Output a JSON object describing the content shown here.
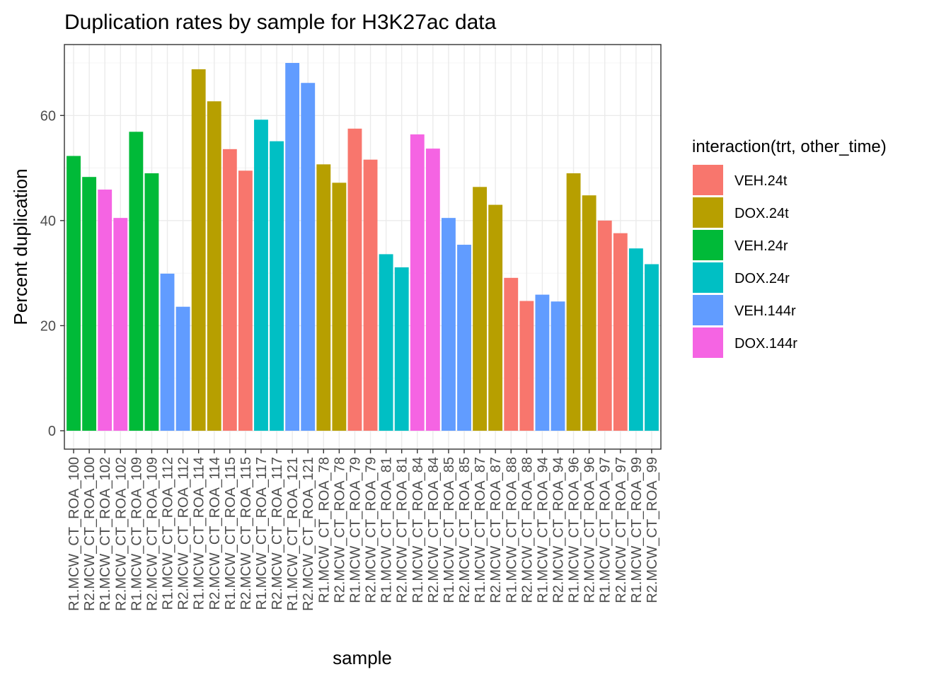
{
  "chart_data": {
    "type": "bar",
    "title": "Duplication rates by sample for H3K27ac data",
    "xlabel": "sample",
    "ylabel": "Percent duplication",
    "ylim": [
      -3.5,
      73.5
    ],
    "yticks": [
      0,
      20,
      40,
      60
    ],
    "grid": true,
    "legend": {
      "title": "interaction(trt, other_time)",
      "placement": "right",
      "entries": [
        {
          "name": "VEH.24t",
          "color": "#F8766D"
        },
        {
          "name": "DOX.24t",
          "color": "#B79F00"
        },
        {
          "name": "VEH.24r",
          "color": "#00BA38"
        },
        {
          "name": "DOX.24r",
          "color": "#00BFC4"
        },
        {
          "name": "VEH.144r",
          "color": "#619CFF"
        },
        {
          "name": "DOX.144r",
          "color": "#F564E3"
        }
      ]
    },
    "categories": [
      "R1.MCW_CT_ROA_100",
      "R2.MCW_CT_ROA_100",
      "R1.MCW_CT_ROA_102",
      "R2.MCW_CT_ROA_102",
      "R1.MCW_CT_ROA_109",
      "R2.MCW_CT_ROA_109",
      "R1.MCW_CT_ROA_112",
      "R2.MCW_CT_ROA_112",
      "R1.MCW_CT_ROA_114",
      "R2.MCW_CT_ROA_114",
      "R1.MCW_CT_ROA_115",
      "R2.MCW_CT_ROA_115",
      "R1.MCW_CT_ROA_117",
      "R2.MCW_CT_ROA_117",
      "R1.MCW_CT_ROA_121",
      "R2.MCW_CT_ROA_121",
      "R1.MCW_CT_ROA_78",
      "R2.MCW_CT_ROA_78",
      "R1.MCW_CT_ROA_79",
      "R2.MCW_CT_ROA_79",
      "R1.MCW_CT_ROA_81",
      "R2.MCW_CT_ROA_81",
      "R1.MCW_CT_ROA_84",
      "R2.MCW_CT_ROA_84",
      "R1.MCW_CT_ROA_85",
      "R2.MCW_CT_ROA_85",
      "R1.MCW_CT_ROA_87",
      "R2.MCW_CT_ROA_87",
      "R1.MCW_CT_ROA_88",
      "R2.MCW_CT_ROA_88",
      "R1.MCW_CT_ROA_94",
      "R2.MCW_CT_ROA_94",
      "R1.MCW_CT_ROA_96",
      "R2.MCW_CT_ROA_96",
      "R1.MCW_CT_ROA_97",
      "R2.MCW_CT_ROA_97",
      "R1.MCW_CT_ROA_99",
      "R2.MCW_CT_ROA_99"
    ],
    "values": [
      52.3,
      48.3,
      45.9,
      40.5,
      56.9,
      49.0,
      29.9,
      23.6,
      68.8,
      62.7,
      53.6,
      49.5,
      59.2,
      55.1,
      70.0,
      66.2,
      50.7,
      47.2,
      57.5,
      51.6,
      33.6,
      31.1,
      56.4,
      53.7,
      40.5,
      35.4,
      46.4,
      43.0,
      29.1,
      24.7,
      25.9,
      24.6,
      49.0,
      44.8,
      40.0,
      37.6,
      34.7,
      31.7
    ],
    "groups": [
      "VEH.24r",
      "VEH.24r",
      "DOX.144r",
      "DOX.144r",
      "VEH.24r",
      "VEH.24r",
      "VEH.144r",
      "VEH.144r",
      "DOX.24t",
      "DOX.24t",
      "VEH.24t",
      "VEH.24t",
      "DOX.24r",
      "DOX.24r",
      "VEH.144r",
      "VEH.144r",
      "DOX.24t",
      "DOX.24t",
      "VEH.24t",
      "VEH.24t",
      "DOX.24r",
      "DOX.24r",
      "DOX.144r",
      "DOX.144r",
      "VEH.144r",
      "VEH.144r",
      "DOX.24t",
      "DOX.24t",
      "VEH.24t",
      "VEH.24t",
      "VEH.144r",
      "VEH.144r",
      "DOX.24t",
      "DOX.24t",
      "VEH.24t",
      "VEH.24t",
      "DOX.24r",
      "DOX.24r"
    ]
  }
}
